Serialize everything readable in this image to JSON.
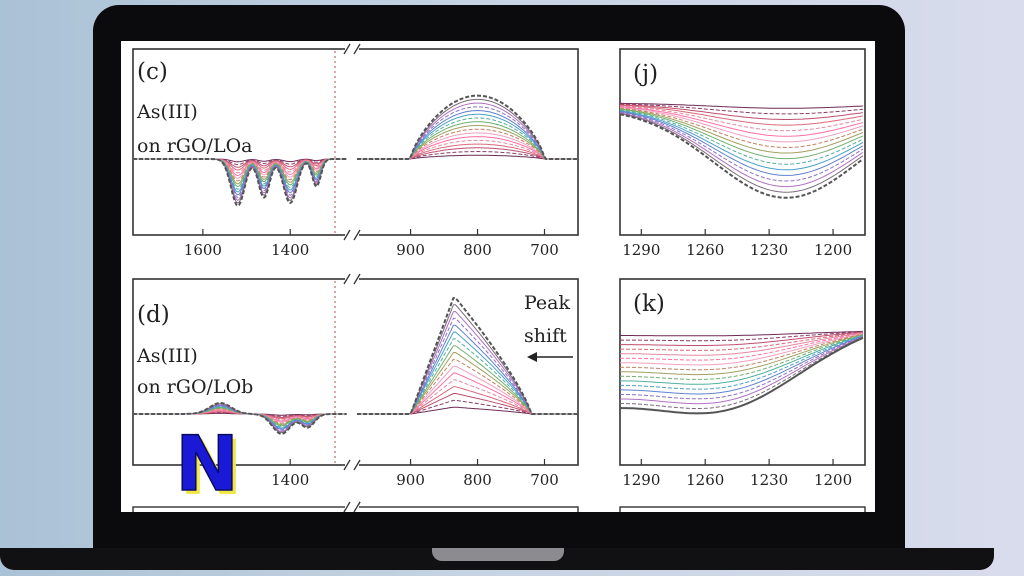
{
  "colors": {
    "frame": "#0b0b0d",
    "screen": "#ffffff",
    "axis": "#333333",
    "logo_fill": "#1a1ad6",
    "logo_shadow": "#f0e64a",
    "series_palette": [
      "#6b2a55",
      "#8e3b63",
      "#c04d6e",
      "#d9697a",
      "#e58aa0",
      "#ff6fa1",
      "#f0a0c0",
      "#c08060",
      "#a0a060",
      "#70b070",
      "#50b0a0",
      "#4aa0c8",
      "#6080d0",
      "#8a70c8",
      "#b070c0",
      "#7a6a7a",
      "#555555"
    ]
  },
  "logo": {
    "icon": "n-logo-icon",
    "glyph": "N"
  },
  "chart_data": [
    {
      "panel": "c",
      "type": "line",
      "label": "(c)",
      "annotation": [
        "As(III)",
        "on rGO/LOa"
      ],
      "x_axis_break": true,
      "left_segment": {
        "xlim": [
          1760,
          1270
        ],
        "xticks": [
          1600,
          1400
        ],
        "xtick_labels": [
          "1600",
          "1400"
        ]
      },
      "right_segment": {
        "xlim": [
          980,
          650
        ],
        "xticks": [
          900,
          800,
          700
        ],
        "xtick_labels": [
          "900",
          "800",
          "700"
        ]
      },
      "series_count": 17,
      "features": {
        "negative_bands": [
          1520,
          1460,
          1400,
          1340
        ],
        "positive_band": {
          "center": 790,
          "start": 900,
          "end": 730,
          "max_height": 0.72
        }
      }
    },
    {
      "panel": "j",
      "type": "line",
      "label": "(j)",
      "xlim": [
        1300,
        1185
      ],
      "xticks": [
        1290,
        1260,
        1230,
        1200
      ],
      "xtick_labels": [
        "1290",
        "1260",
        "1230",
        "1200"
      ],
      "series_count": 17,
      "features": {
        "minimum_at": 1222
      }
    },
    {
      "panel": "d",
      "type": "line",
      "label": "(d)",
      "annotation": [
        "As(III)",
        "on rGO/LOb"
      ],
      "annotation_right": [
        "Peak",
        "shift"
      ],
      "x_axis_break": true,
      "left_segment": {
        "xlim": [
          1760,
          1270
        ],
        "xticks": [
          1400
        ],
        "xtick_labels": [
          "1400"
        ]
      },
      "right_segment": {
        "xlim": [
          980,
          650
        ],
        "xticks": [
          900,
          800,
          700
        ],
        "xtick_labels": [
          "900",
          "800",
          "700"
        ]
      },
      "series_count": 17,
      "features": {
        "positive_band": {
          "center": 835,
          "start": 900,
          "end": 720,
          "max_height": 0.95
        },
        "peak_shift_direction": "lower wavenumber"
      }
    },
    {
      "panel": "k",
      "type": "line",
      "label": "(k)",
      "xlim": [
        1300,
        1185
      ],
      "xticks": [
        1290,
        1260,
        1230,
        1200
      ],
      "xtick_labels": [
        "1290",
        "1260",
        "1230",
        "1200"
      ],
      "series_count": 17,
      "features": {
        "minimum_at": 1248
      }
    }
  ]
}
